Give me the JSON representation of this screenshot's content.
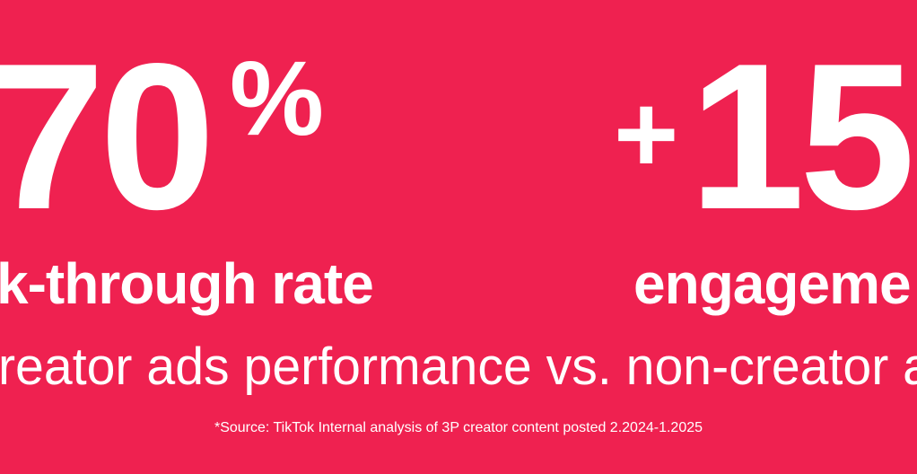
{
  "stats": [
    {
      "value": "70",
      "unit": "%",
      "label": "k-through rate"
    },
    {
      "prefix": "+",
      "value": "15",
      "label": "engageme"
    }
  ],
  "subtitle": "reator ads performance vs. non-creator a",
  "source": "*Source: TikTok Internal analysis of 3P creator content posted 2.2024-1.2025"
}
